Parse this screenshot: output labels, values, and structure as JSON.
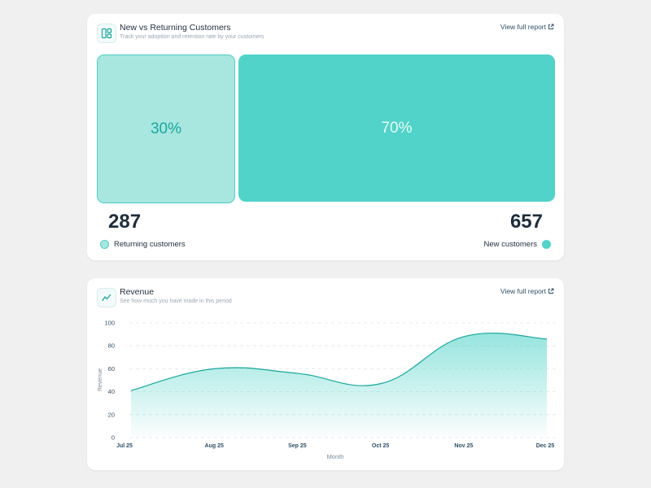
{
  "customers_card": {
    "title": "New vs Returning Customers",
    "subtitle": "Track your adoption and retention rate by your customers",
    "view_link": "View full report",
    "returning": {
      "percent": "30%",
      "count": "287",
      "label": "Returning customers",
      "color": "#a8e6e0"
    },
    "new": {
      "percent": "70%",
      "count": "657",
      "label": "New customers",
      "color": "#51d3c9"
    }
  },
  "revenue_card": {
    "title": "Revenue",
    "subtitle": "See how much you have made in this period",
    "view_link": "View full report"
  },
  "chart_data": {
    "type": "area",
    "categories": [
      "Jul 25",
      "Aug 25",
      "Sep 25",
      "Oct 25",
      "Nov 25",
      "Dec 25"
    ],
    "values": [
      41,
      60,
      56,
      47,
      88,
      86
    ],
    "xlabel": "Month",
    "ylabel": "Revenue",
    "ylim": [
      0,
      100
    ],
    "yticks": [
      0,
      20,
      40,
      60,
      80,
      100
    ],
    "grid": true,
    "color": "#1aa79c"
  }
}
